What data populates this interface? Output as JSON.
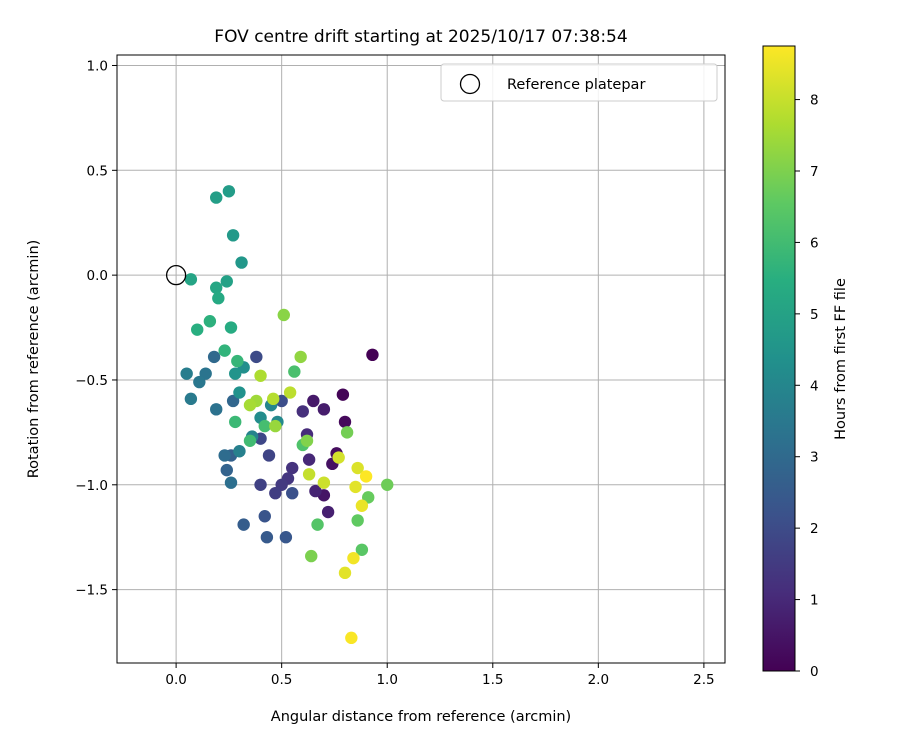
{
  "chart_data": {
    "type": "scatter",
    "title": "FOV centre drift starting at 2025/10/17 07:38:54",
    "xlabel": "Angular distance from reference (arcmin)",
    "ylabel": "Rotation from reference (arcmin)",
    "xlim": [
      -0.28,
      2.6
    ],
    "ylim": [
      -1.85,
      1.05
    ],
    "xticks": [
      0.0,
      0.5,
      1.0,
      1.5,
      2.0,
      2.5
    ],
    "yticks": [
      0.5,
      0.0,
      -0.5,
      -1.0,
      -1.5
    ],
    "xtick_labels": [
      "0.0",
      "0.5",
      "1.0",
      "1.5",
      "2.0",
      "2.5"
    ],
    "ytick_labels": [
      "0.5",
      "0.0",
      "−0.5",
      "−1.0",
      "−1.5"
    ],
    "ytick_top_label": "1.0",
    "grid": true,
    "legend": {
      "location": "upper right",
      "entries": [
        "Reference platepar"
      ]
    },
    "reference_point": {
      "x": 0.0,
      "y": 0.0,
      "label": "Reference platepar"
    },
    "colorbar": {
      "label": "Hours from first FF file",
      "min": 0,
      "max": 8.75,
      "ticks": [
        0,
        1,
        2,
        3,
        4,
        5,
        6,
        7,
        8
      ],
      "tick_labels": [
        "0",
        "1",
        "2",
        "3",
        "4",
        "5",
        "6",
        "7",
        "8"
      ],
      "colormap": "viridis"
    },
    "points": [
      [
        0.93,
        -0.38,
        0.0
      ],
      [
        0.79,
        -0.57,
        0.1
      ],
      [
        0.8,
        -0.7,
        0.2
      ],
      [
        0.76,
        -0.85,
        0.3
      ],
      [
        0.74,
        -0.9,
        0.4
      ],
      [
        0.7,
        -1.05,
        0.5
      ],
      [
        0.65,
        -0.6,
        0.6
      ],
      [
        0.7,
        -0.64,
        0.7
      ],
      [
        0.72,
        -1.13,
        0.8
      ],
      [
        0.66,
        -1.03,
        0.9
      ],
      [
        0.63,
        -0.88,
        1.0
      ],
      [
        0.62,
        -0.76,
        1.1
      ],
      [
        0.6,
        -0.65,
        1.2
      ],
      [
        0.55,
        -0.92,
        1.3
      ],
      [
        0.53,
        -0.97,
        1.4
      ],
      [
        0.5,
        -1.0,
        1.5
      ],
      [
        0.47,
        -1.04,
        1.6
      ],
      [
        0.4,
        -1.0,
        1.7
      ],
      [
        0.44,
        -0.86,
        1.8
      ],
      [
        0.4,
        -0.78,
        1.9
      ],
      [
        0.38,
        -0.39,
        2.0
      ],
      [
        0.5,
        -0.6,
        2.1
      ],
      [
        0.55,
        -1.04,
        2.2
      ],
      [
        0.42,
        -1.15,
        2.3
      ],
      [
        0.52,
        -1.25,
        2.4
      ],
      [
        0.43,
        -1.25,
        2.5
      ],
      [
        0.32,
        -1.19,
        2.6
      ],
      [
        0.26,
        -0.86,
        2.7
      ],
      [
        0.24,
        -0.93,
        2.8
      ],
      [
        0.27,
        -0.6,
        2.9
      ],
      [
        0.18,
        -0.39,
        3.0
      ],
      [
        0.23,
        -0.86,
        3.1
      ],
      [
        0.26,
        -0.99,
        3.2
      ],
      [
        0.19,
        -0.64,
        3.3
      ],
      [
        0.14,
        -0.47,
        3.4
      ],
      [
        0.11,
        -0.51,
        3.5
      ],
      [
        0.07,
        -0.59,
        3.6
      ],
      [
        0.05,
        -0.47,
        3.7
      ],
      [
        0.3,
        -0.84,
        3.8
      ],
      [
        0.36,
        -0.77,
        3.9
      ],
      [
        0.45,
        -0.62,
        4.0
      ],
      [
        0.48,
        -0.7,
        4.1
      ],
      [
        0.4,
        -0.68,
        4.2
      ],
      [
        0.32,
        -0.44,
        4.3
      ],
      [
        0.3,
        -0.56,
        4.4
      ],
      [
        0.28,
        -0.47,
        4.5
      ],
      [
        0.31,
        0.06,
        4.6
      ],
      [
        0.27,
        0.19,
        4.7
      ],
      [
        0.25,
        0.4,
        4.8
      ],
      [
        0.19,
        0.37,
        4.9
      ],
      [
        0.24,
        -0.03,
        5.0
      ],
      [
        0.07,
        -0.02,
        5.1
      ],
      [
        0.19,
        -0.06,
        5.2
      ],
      [
        0.2,
        -0.11,
        5.3
      ],
      [
        0.26,
        -0.25,
        5.4
      ],
      [
        0.1,
        -0.26,
        5.5
      ],
      [
        0.16,
        -0.22,
        5.6
      ],
      [
        0.23,
        -0.36,
        5.7
      ],
      [
        0.29,
        -0.41,
        5.8
      ],
      [
        0.28,
        -0.7,
        5.9
      ],
      [
        0.35,
        -0.79,
        6.0
      ],
      [
        0.42,
        -0.72,
        6.1
      ],
      [
        0.56,
        -0.46,
        6.2
      ],
      [
        0.6,
        -0.81,
        6.3
      ],
      [
        0.67,
        -1.19,
        6.4
      ],
      [
        0.88,
        -1.31,
        6.5
      ],
      [
        0.86,
        -1.17,
        6.6
      ],
      [
        0.91,
        -1.06,
        6.7
      ],
      [
        1.0,
        -1.0,
        6.8
      ],
      [
        0.81,
        -0.75,
        6.9
      ],
      [
        0.64,
        -1.34,
        7.0
      ],
      [
        0.62,
        -0.79,
        7.1
      ],
      [
        0.51,
        -0.19,
        7.2
      ],
      [
        0.59,
        -0.39,
        7.3
      ],
      [
        0.47,
        -0.72,
        7.4
      ],
      [
        0.38,
        -0.6,
        7.5
      ],
      [
        0.35,
        -0.62,
        7.6
      ],
      [
        0.4,
        -0.48,
        7.7
      ],
      [
        0.46,
        -0.59,
        7.8
      ],
      [
        0.54,
        -0.56,
        7.9
      ],
      [
        0.63,
        -0.95,
        8.0
      ],
      [
        0.7,
        -0.99,
        8.1
      ],
      [
        0.77,
        -0.87,
        8.2
      ],
      [
        0.86,
        -0.92,
        8.3
      ],
      [
        0.85,
        -1.01,
        8.4
      ],
      [
        0.88,
        -1.1,
        8.5
      ],
      [
        0.84,
        -1.35,
        8.6
      ],
      [
        0.83,
        -1.73,
        8.7
      ],
      [
        0.9,
        -0.96,
        8.75
      ],
      [
        0.8,
        -1.42,
        8.4
      ]
    ]
  }
}
